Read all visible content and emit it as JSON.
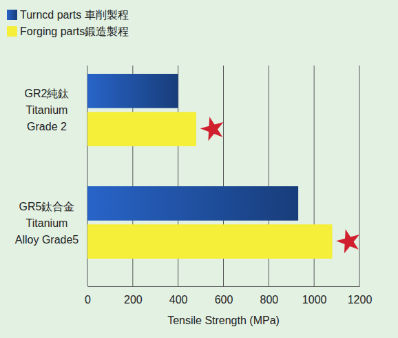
{
  "chart_data": {
    "type": "bar",
    "orientation": "horizontal",
    "categories": [
      "GR2純鈦\nTitanium\nGrade 2",
      "GR5鈦合金\nTitanium\nAlloy Grade5"
    ],
    "series": [
      {
        "name": "Turncd parts 車削製程",
        "color": "#1f4e9c",
        "values": [
          400,
          930
        ]
      },
      {
        "name": "Forging parts鍛造製程",
        "color": "#f5ef3a",
        "values": [
          480,
          1080
        ]
      }
    ],
    "x_label": "Tensile Strength (MPa)",
    "xlim": [
      0,
      1200
    ],
    "xticks": [
      0,
      200,
      400,
      600,
      800,
      1000,
      1200
    ],
    "grid": true,
    "legend": "top-left"
  }
}
